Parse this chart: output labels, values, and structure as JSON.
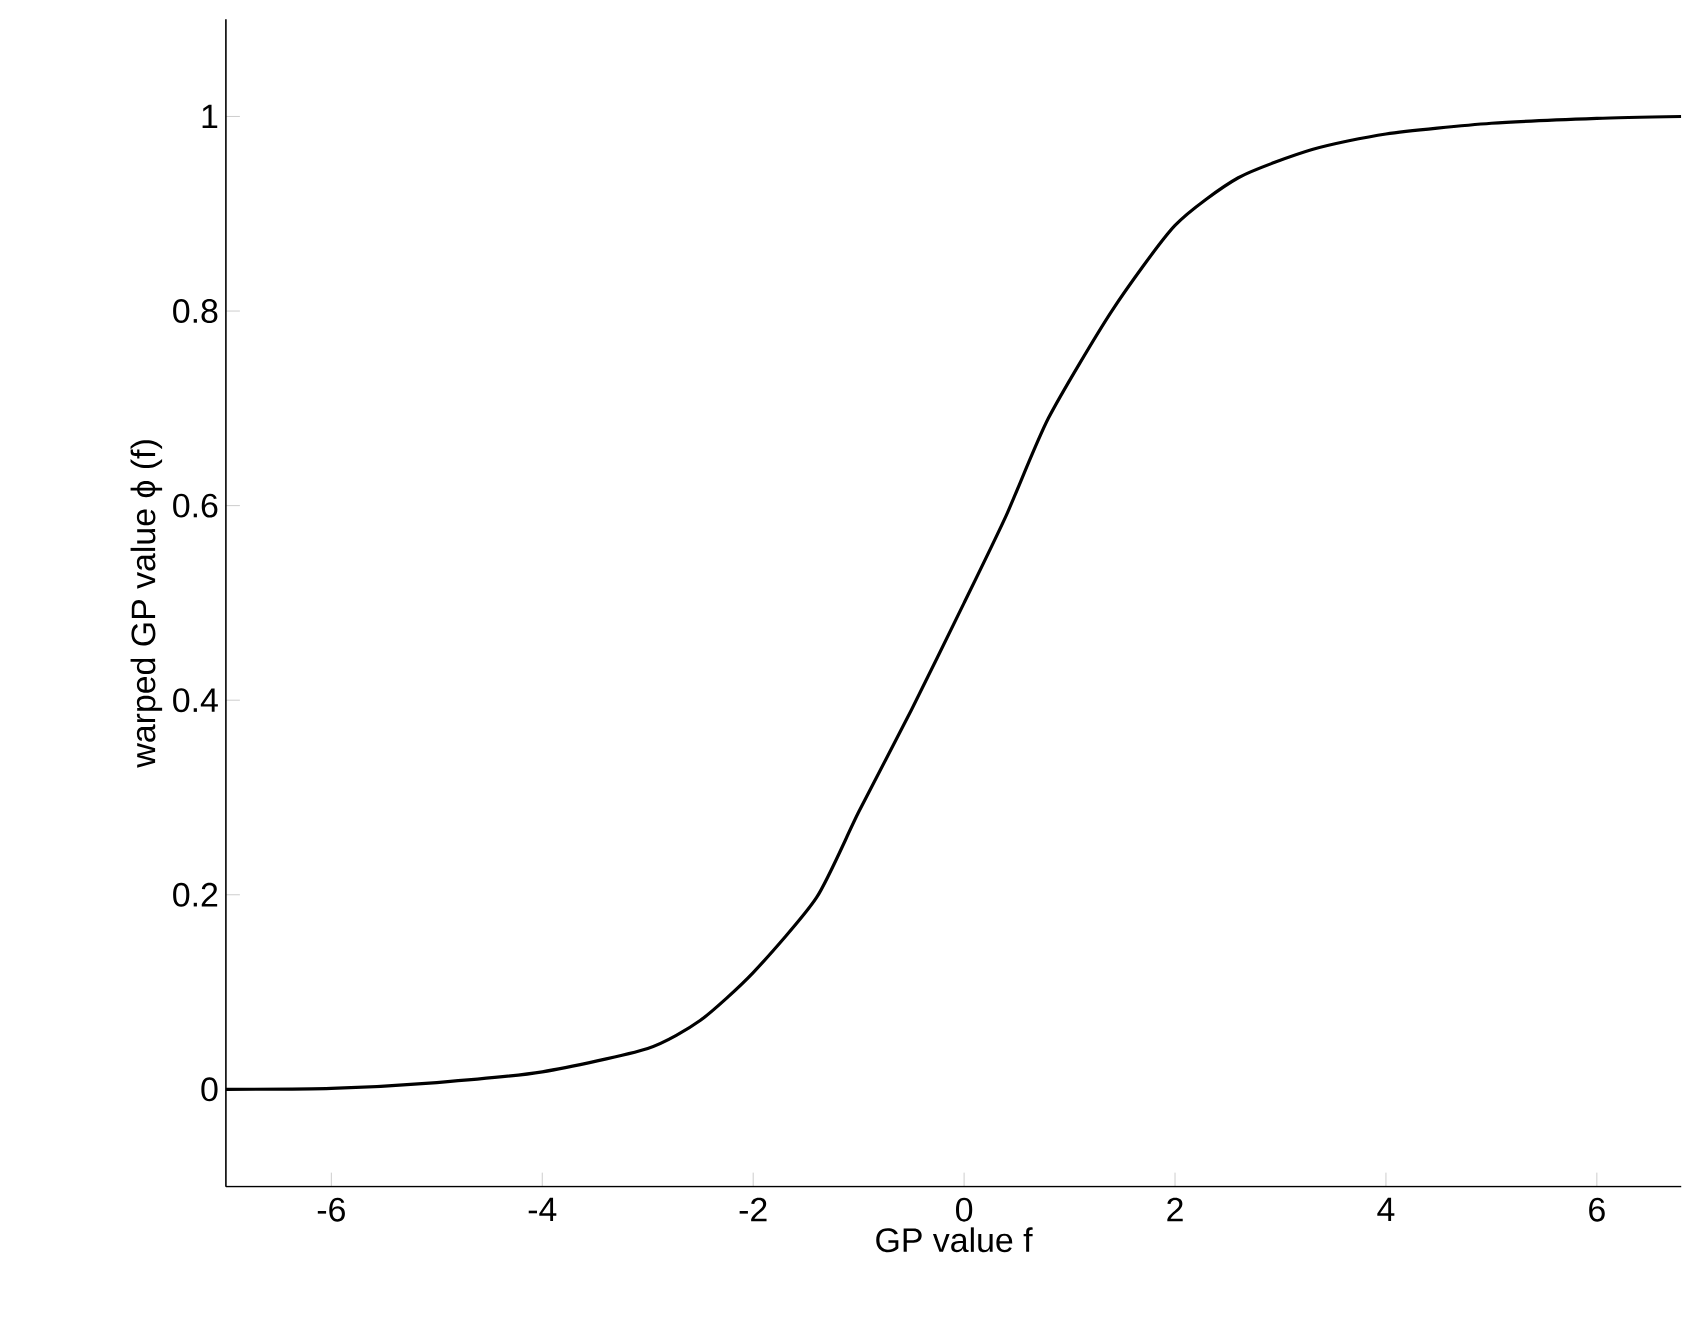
{
  "chart_data": {
    "type": "line",
    "xlabel": "GP value f",
    "ylabel": "warped GP value ϕ (f)",
    "xlim": [
      -7,
      6.8
    ],
    "ylim": [
      -0.1,
      1.1
    ],
    "xticks": [
      -6,
      -4,
      -2,
      0,
      2,
      4,
      6
    ],
    "yticks": [
      0,
      0.2,
      0.4,
      0.6,
      0.8,
      1
    ],
    "grid": false,
    "marker": "none",
    "line_style": "solid",
    "series": [
      {
        "color": "#000000",
        "x": [
          -7,
          -6,
          -5,
          -4,
          -3,
          -2.5,
          -2,
          -1.4,
          -1,
          -0.5,
          0,
          0.4,
          0.8,
          1.4,
          2,
          2.6,
          3.3,
          4,
          5,
          6,
          6.8
        ],
        "values": [
          0,
          0.001,
          0.007,
          0.018,
          0.042,
          0.071,
          0.12,
          0.197,
          0.285,
          0.39,
          0.5,
          0.59,
          0.69,
          0.8,
          0.888,
          0.937,
          0.966,
          0.982,
          0.993,
          0.998,
          1
        ]
      }
    ]
  }
}
